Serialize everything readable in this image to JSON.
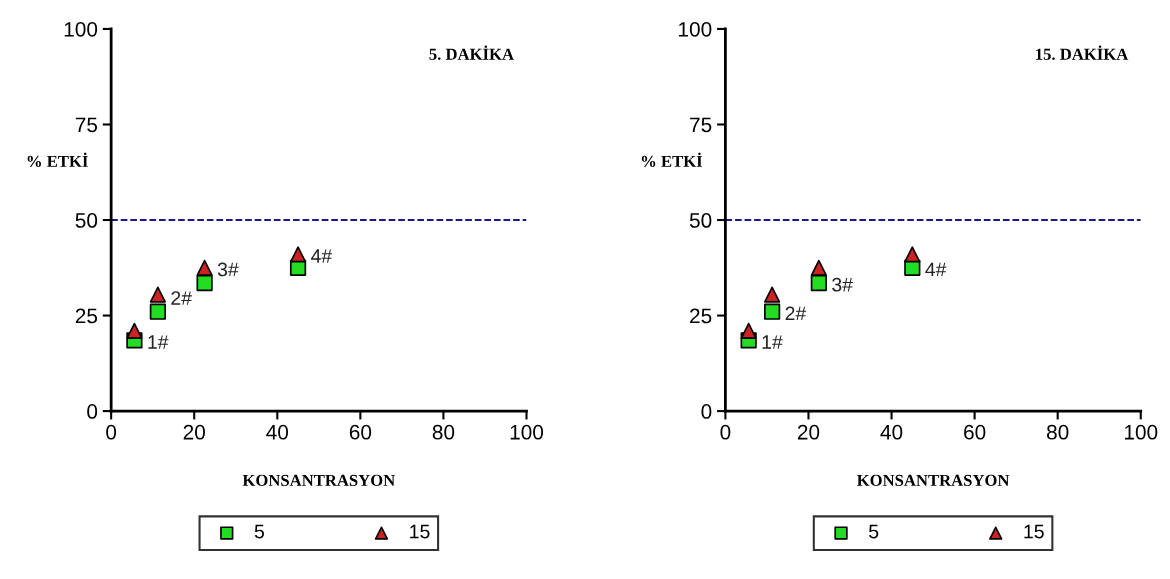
{
  "chart_data": [
    {
      "type": "scatter",
      "title": "5. DAKİKA",
      "xlabel": "KONSANTRASYON",
      "ylabel": "% ETKİ",
      "xlim": [
        0,
        100
      ],
      "ylim": [
        0,
        100
      ],
      "xticks": [
        0,
        20,
        40,
        60,
        80,
        100
      ],
      "yticks": [
        0,
        25,
        50,
        75,
        100
      ],
      "grid": false,
      "legend": "bottom",
      "series": [
        {
          "name": "5",
          "color": "#22dd22",
          "marker": "square",
          "x": [
            5.6,
            11.25,
            22.5,
            45
          ],
          "values": [
            18.5,
            26,
            33.5,
            37.5
          ]
        },
        {
          "name": "15",
          "color": "#cc2222",
          "marker": "triangle",
          "x": [
            5.6,
            11.25,
            22.5,
            45
          ],
          "values": [
            21,
            30.5,
            37.5,
            41
          ]
        }
      ],
      "ref_lines": [
        {
          "axis": "y",
          "value": 50,
          "color": "#1a1a8c",
          "line_style": "dashed"
        }
      ],
      "annotations": [
        {
          "text": "1#",
          "x": 5.6,
          "y": 18.5
        },
        {
          "text": "2#",
          "x": 11.25,
          "y": 30
        },
        {
          "text": "3#",
          "x": 22.5,
          "y": 37.5
        },
        {
          "text": "4#",
          "x": 45,
          "y": 41
        }
      ]
    },
    {
      "type": "scatter",
      "title": "15. DAKİKA",
      "xlabel": "KONSANTRASYON",
      "ylabel": "% ETKİ",
      "xlim": [
        0,
        100
      ],
      "ylim": [
        0,
        100
      ],
      "xticks": [
        0,
        20,
        40,
        60,
        80,
        100
      ],
      "yticks": [
        0,
        25,
        50,
        75,
        100
      ],
      "grid": false,
      "legend": "bottom",
      "series": [
        {
          "name": "5",
          "color": "#22dd22",
          "marker": "square",
          "x": [
            5.6,
            11.25,
            22.5,
            45
          ],
          "values": [
            18.5,
            26,
            33.5,
            37.5
          ]
        },
        {
          "name": "15",
          "color": "#cc2222",
          "marker": "triangle",
          "x": [
            5.6,
            11.25,
            22.5,
            45
          ],
          "values": [
            21,
            30.5,
            37.5,
            41
          ]
        }
      ],
      "ref_lines": [
        {
          "axis": "y",
          "value": 50,
          "color": "#1a1a8c",
          "line_style": "dashed"
        }
      ],
      "annotations": [
        {
          "text": "1#",
          "x": 5.6,
          "y": 18.5
        },
        {
          "text": "2#",
          "x": 11.25,
          "y": 26
        },
        {
          "text": "3#",
          "x": 22.5,
          "y": 33.5
        },
        {
          "text": "4#",
          "x": 45,
          "y": 37.5
        }
      ]
    }
  ]
}
